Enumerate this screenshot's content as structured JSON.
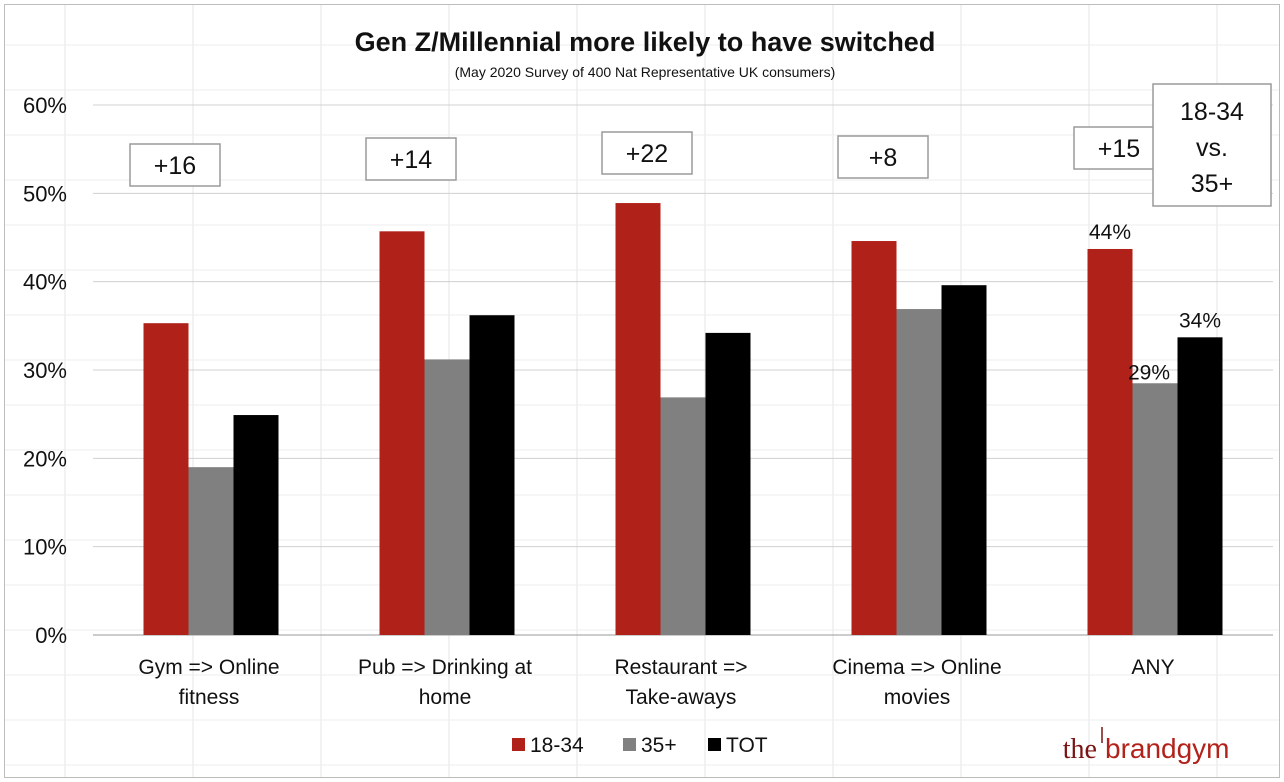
{
  "chart_data": {
    "type": "bar",
    "title": "Gen Z/Millennial more likely to have switched",
    "subtitle": "(May 2020 Survey of 400 Nat Representative UK consumers)",
    "categories": [
      [
        "Gym => Online",
        "fitness"
      ],
      [
        "Pub =>  Drinking at",
        "home"
      ],
      [
        "Restaurant =>",
        "Take-aways"
      ],
      [
        "Cinema => Online",
        "movies"
      ],
      [
        "ANY"
      ]
    ],
    "series": [
      {
        "name": "18-34",
        "color": "#b0211a",
        "values": [
          35.3,
          45.7,
          48.9,
          44.6,
          43.7
        ]
      },
      {
        "name": "35+",
        "color": "#808080",
        "values": [
          19.0,
          31.2,
          26.9,
          36.9,
          28.5
        ]
      },
      {
        "name": "TOT",
        "color": "#000000",
        "values": [
          24.9,
          36.2,
          34.2,
          39.6,
          33.7
        ]
      }
    ],
    "ylim": [
      0,
      60
    ],
    "ytick_step": 10,
    "ytick_labels": [
      "0%",
      "10%",
      "20%",
      "30%",
      "40%",
      "50%",
      "60%"
    ],
    "grid": true,
    "data_labels": [
      {
        "category": 4,
        "series": 0,
        "text": "44%"
      },
      {
        "category": 4,
        "series": 1,
        "text": "29%"
      },
      {
        "category": 4,
        "series": 2,
        "text": "34%"
      }
    ],
    "annotations": [
      "+16",
      "+14",
      "+22",
      "+8",
      "+15"
    ],
    "callout": [
      "18-34",
      "vs.",
      "35+"
    ],
    "legend_position": "bottom"
  },
  "brand": {
    "part1": "the",
    "part2": "brandgym"
  }
}
